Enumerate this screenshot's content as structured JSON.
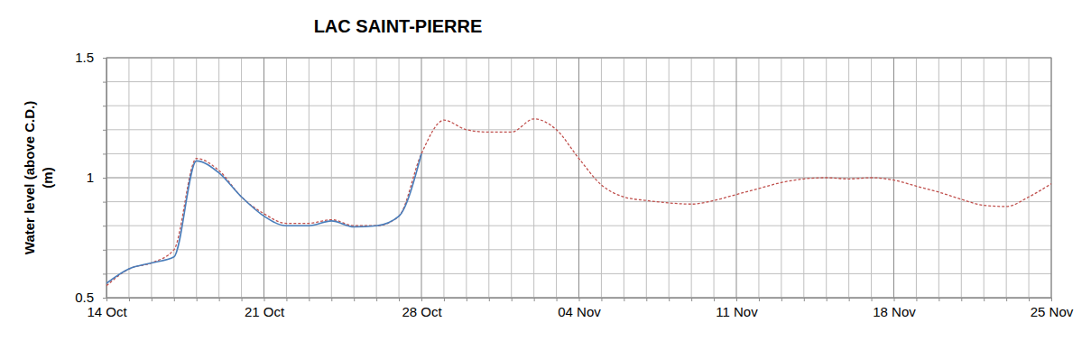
{
  "chart_data": {
    "type": "line",
    "title": "LAC SAINT-PIERRE",
    "ylabel": "Water level (above C.D.)\n(m)",
    "categories": [
      "14 Oct",
      null,
      null,
      null,
      null,
      null,
      null,
      "21 Oct",
      null,
      null,
      null,
      null,
      null,
      null,
      "28 Oct",
      null,
      null,
      null,
      null,
      null,
      null,
      "04 Nov",
      null,
      null,
      null,
      null,
      null,
      null,
      "11 Nov",
      null,
      null,
      null,
      null,
      null,
      null,
      "18 Nov",
      null,
      null,
      null,
      null,
      null,
      null,
      "25 Nov"
    ],
    "series": [
      {
        "color": "#c0504d",
        "line_style": "dashed",
        "values": [
          0.55,
          0.62,
          0.645,
          0.7,
          1.08,
          1.03,
          0.92,
          0.85,
          0.81,
          0.81,
          0.825,
          0.8,
          0.8,
          0.84,
          1.1,
          1.24,
          1.2,
          1.19,
          1.19,
          1.245,
          1.2,
          1.08,
          0.97,
          0.92,
          0.905,
          0.895,
          0.89,
          0.905,
          0.93,
          0.955,
          0.98,
          0.995,
          1.0,
          0.995,
          1.0,
          0.99,
          0.965,
          0.94,
          0.91,
          0.885,
          0.88,
          0.92,
          0.975
        ]
      },
      {
        "color": "#4a7ebb",
        "line_style": "solid",
        "values": [
          0.56,
          0.62,
          0.645,
          0.67,
          1.07,
          1.02,
          0.92,
          0.84,
          0.8,
          0.8,
          0.82,
          0.795,
          0.8,
          0.84,
          1.1,
          null,
          null,
          null,
          null,
          null,
          null,
          null,
          null,
          null,
          null,
          null,
          null,
          null,
          null,
          null,
          null,
          null,
          null,
          null,
          null,
          null,
          null,
          null,
          null,
          null,
          null,
          null,
          null
        ]
      }
    ],
    "ylim": [
      0.5,
      1.5
    ],
    "yticks": [
      0.5,
      {
        "value": 0.6,
        "label": null
      },
      {
        "value": 0.7,
        "label": null
      },
      {
        "value": 0.8,
        "label": null
      },
      {
        "value": 0.9,
        "label": null
      },
      1,
      {
        "value": 1.1,
        "label": null
      },
      {
        "value": 1.2,
        "label": null
      },
      {
        "value": 1.3,
        "label": null
      },
      {
        "value": 1.4,
        "label": null
      },
      1.5
    ],
    "grid": true
  }
}
